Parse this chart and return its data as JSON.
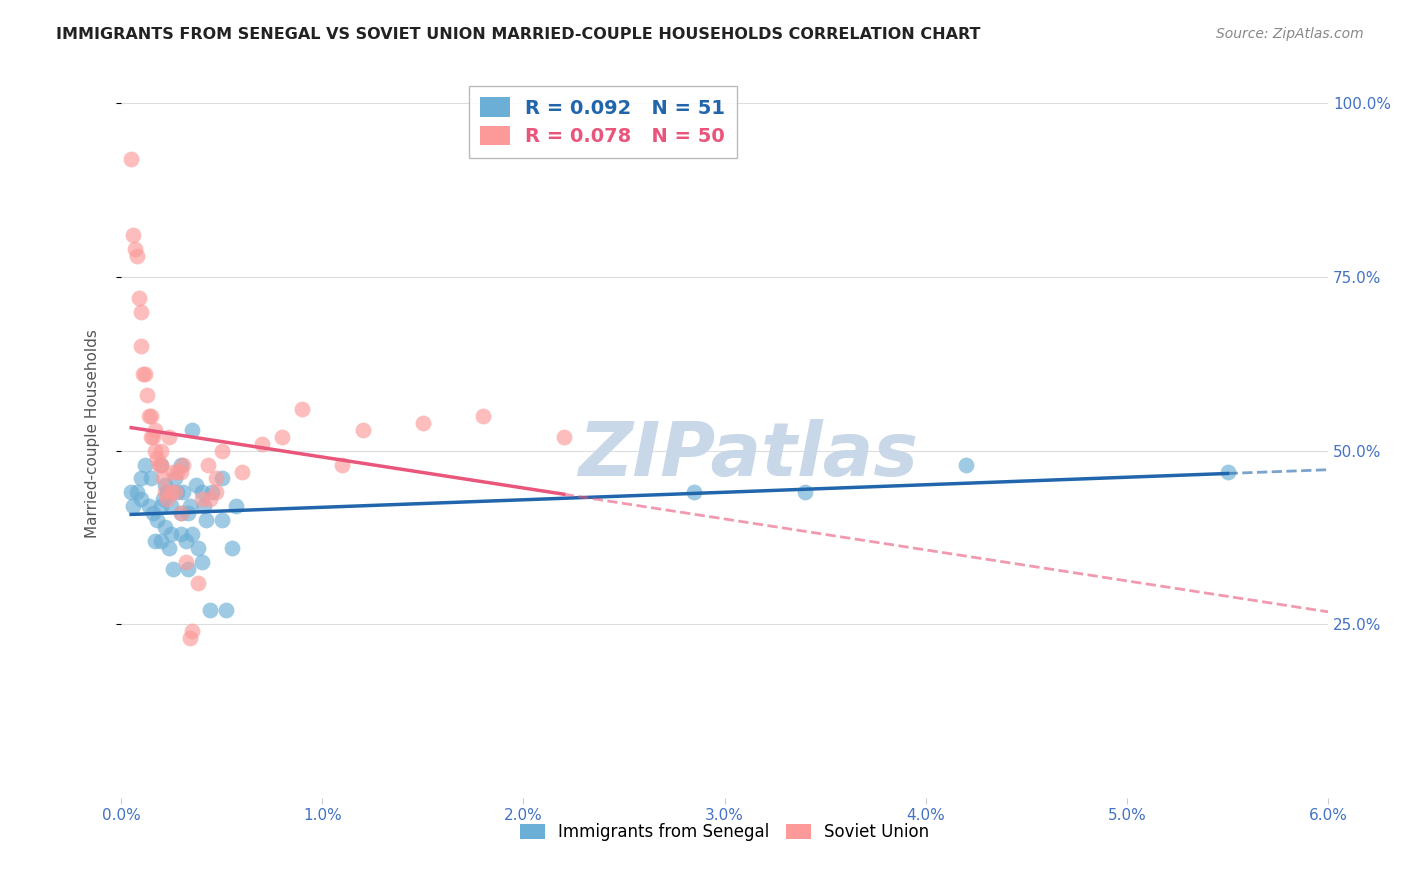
{
  "title": "IMMIGRANTS FROM SENEGAL VS SOVIET UNION MARRIED-COUPLE HOUSEHOLDS CORRELATION CHART",
  "source": "Source: ZipAtlas.com",
  "ylabel": "Married-couple Households",
  "xlim": [
    0.0,
    0.06
  ],
  "ylim": [
    0.0,
    1.05
  ],
  "xtick_labels": [
    "0.0%",
    "1.0%",
    "2.0%",
    "3.0%",
    "4.0%",
    "5.0%",
    "6.0%"
  ],
  "xtick_values": [
    0.0,
    0.01,
    0.02,
    0.03,
    0.04,
    0.05,
    0.06
  ],
  "ytick_labels": [
    "25.0%",
    "50.0%",
    "75.0%",
    "100.0%"
  ],
  "ytick_values": [
    0.25,
    0.5,
    0.75,
    1.0
  ],
  "senegal_R": 0.092,
  "senegal_N": 51,
  "soviet_R": 0.078,
  "soviet_N": 50,
  "senegal_color": "#6baed6",
  "soviet_color": "#fb9a99",
  "senegal_line_color": "#2166ac",
  "soviet_line_color": "#e9567b",
  "background_color": "#ffffff",
  "grid_color": "#dddddd",
  "watermark_text": "ZIPatlas",
  "watermark_color": "#c8d8e8",
  "legend_label_senegal": "Immigrants from Senegal",
  "legend_label_soviet": "Soviet Union",
  "senegal_x": [
    0.0005,
    0.0006,
    0.0008,
    0.001,
    0.001,
    0.0012,
    0.0014,
    0.0015,
    0.0016,
    0.0017,
    0.0018,
    0.002,
    0.002,
    0.002,
    0.0021,
    0.0022,
    0.0022,
    0.0023,
    0.0024,
    0.0025,
    0.0025,
    0.0026,
    0.0027,
    0.0028,
    0.003,
    0.003,
    0.003,
    0.0031,
    0.0032,
    0.0033,
    0.0033,
    0.0034,
    0.0035,
    0.0035,
    0.0037,
    0.0038,
    0.004,
    0.004,
    0.0041,
    0.0042,
    0.0044,
    0.0045,
    0.005,
    0.005,
    0.0052,
    0.0055,
    0.0057,
    0.0285,
    0.034,
    0.042,
    0.055
  ],
  "senegal_y": [
    0.44,
    0.42,
    0.44,
    0.46,
    0.43,
    0.48,
    0.42,
    0.46,
    0.41,
    0.37,
    0.4,
    0.42,
    0.48,
    0.37,
    0.43,
    0.45,
    0.39,
    0.44,
    0.36,
    0.42,
    0.38,
    0.33,
    0.46,
    0.44,
    0.48,
    0.38,
    0.41,
    0.44,
    0.37,
    0.41,
    0.33,
    0.42,
    0.38,
    0.53,
    0.45,
    0.36,
    0.34,
    0.44,
    0.42,
    0.4,
    0.27,
    0.44,
    0.46,
    0.4,
    0.27,
    0.36,
    0.42,
    0.44,
    0.44,
    0.48,
    0.47
  ],
  "soviet_x": [
    0.0005,
    0.0006,
    0.0007,
    0.0008,
    0.0009,
    0.001,
    0.001,
    0.0011,
    0.0012,
    0.0013,
    0.0014,
    0.0015,
    0.0015,
    0.0016,
    0.0017,
    0.0017,
    0.0018,
    0.0019,
    0.002,
    0.002,
    0.0021,
    0.0022,
    0.0023,
    0.0024,
    0.0025,
    0.0026,
    0.0027,
    0.0028,
    0.003,
    0.003,
    0.0031,
    0.0032,
    0.0034,
    0.0035,
    0.0038,
    0.004,
    0.0043,
    0.0044,
    0.0047,
    0.0047,
    0.005,
    0.006,
    0.007,
    0.008,
    0.009,
    0.011,
    0.012,
    0.015,
    0.018,
    0.022
  ],
  "soviet_y": [
    0.92,
    0.81,
    0.79,
    0.78,
    0.72,
    0.7,
    0.65,
    0.61,
    0.61,
    0.58,
    0.55,
    0.52,
    0.55,
    0.52,
    0.53,
    0.5,
    0.49,
    0.48,
    0.48,
    0.5,
    0.46,
    0.44,
    0.43,
    0.52,
    0.44,
    0.47,
    0.44,
    0.47,
    0.41,
    0.47,
    0.48,
    0.34,
    0.23,
    0.24,
    0.31,
    0.43,
    0.48,
    0.43,
    0.44,
    0.46,
    0.5,
    0.47,
    0.51,
    0.52,
    0.56,
    0.48,
    0.53,
    0.54,
    0.55,
    0.52
  ]
}
